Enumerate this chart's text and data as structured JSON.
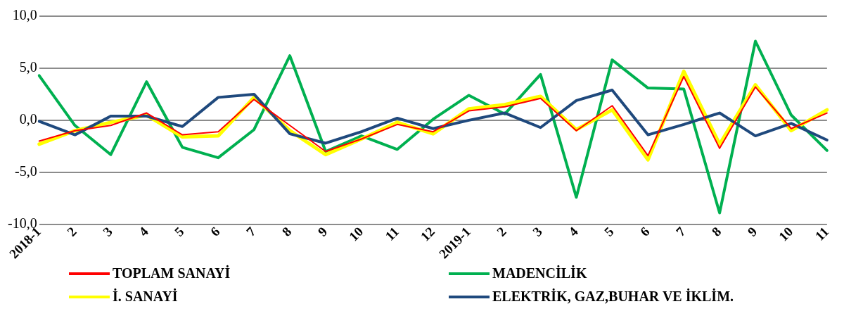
{
  "chart_data": {
    "type": "line",
    "categories": [
      "2018-1",
      "2",
      "3",
      "4",
      "5",
      "6",
      "7",
      "8",
      "9",
      "10",
      "11",
      "12",
      "2019-1",
      "2",
      "3",
      "4",
      "5",
      "6",
      "7",
      "8",
      "9",
      "10",
      "11"
    ],
    "ylim": [
      -10,
      10
    ],
    "yticks": [
      {
        "value": -10,
        "label": "-10,0"
      },
      {
        "value": -5,
        "label": "-5,0"
      },
      {
        "value": 0,
        "label": "0,0"
      },
      {
        "value": 5,
        "label": "5,0"
      },
      {
        "value": 10,
        "label": "10,0"
      }
    ],
    "grid": "y",
    "legend": "bottom",
    "marker": "none",
    "line_style": "solid",
    "series": [
      {
        "name": "TOPLAM SANAYİ",
        "color": "#ff0000",
        "values": [
          -2.0,
          -1.0,
          -0.5,
          0.7,
          -1.4,
          -1.1,
          2.0,
          -0.5,
          -3.0,
          -1.8,
          -0.4,
          -1.1,
          0.9,
          1.3,
          2.1,
          -1.0,
          1.4,
          -3.4,
          4.2,
          -2.7,
          3.2,
          -0.8,
          0.7
        ]
      },
      {
        "name": "MADENCİLİK",
        "color": "#00b050",
        "values": [
          4.3,
          -0.5,
          -3.3,
          3.7,
          -2.6,
          -3.6,
          -0.9,
          6.2,
          -3.0,
          -1.5,
          -2.8,
          0.1,
          2.4,
          0.6,
          4.4,
          -7.4,
          5.8,
          3.1,
          3.0,
          -8.9,
          7.6,
          0.5,
          -2.9
        ]
      },
      {
        "name": "İ. SANAYİ",
        "color": "#ffff00",
        "values": [
          -2.3,
          -1.0,
          -0.2,
          0.5,
          -1.6,
          -1.5,
          2.2,
          -1.0,
          -3.3,
          -1.8,
          -0.2,
          -1.3,
          1.1,
          1.5,
          2.3,
          -0.9,
          1.0,
          -3.8,
          4.7,
          -2.3,
          3.4,
          -1.0,
          1.0
        ]
      },
      {
        "name": "ELEKTRİK, GAZ,BUHAR VE İKLİM.",
        "color": "#1f497d",
        "values": [
          -0.1,
          -1.4,
          0.4,
          0.4,
          -0.6,
          2.2,
          2.5,
          -1.3,
          -2.2,
          -1.1,
          0.2,
          -0.8,
          0.0,
          0.7,
          -0.7,
          1.9,
          2.9,
          -1.4,
          -0.4,
          0.7,
          -1.5,
          -0.3,
          -1.9
        ]
      }
    ]
  }
}
